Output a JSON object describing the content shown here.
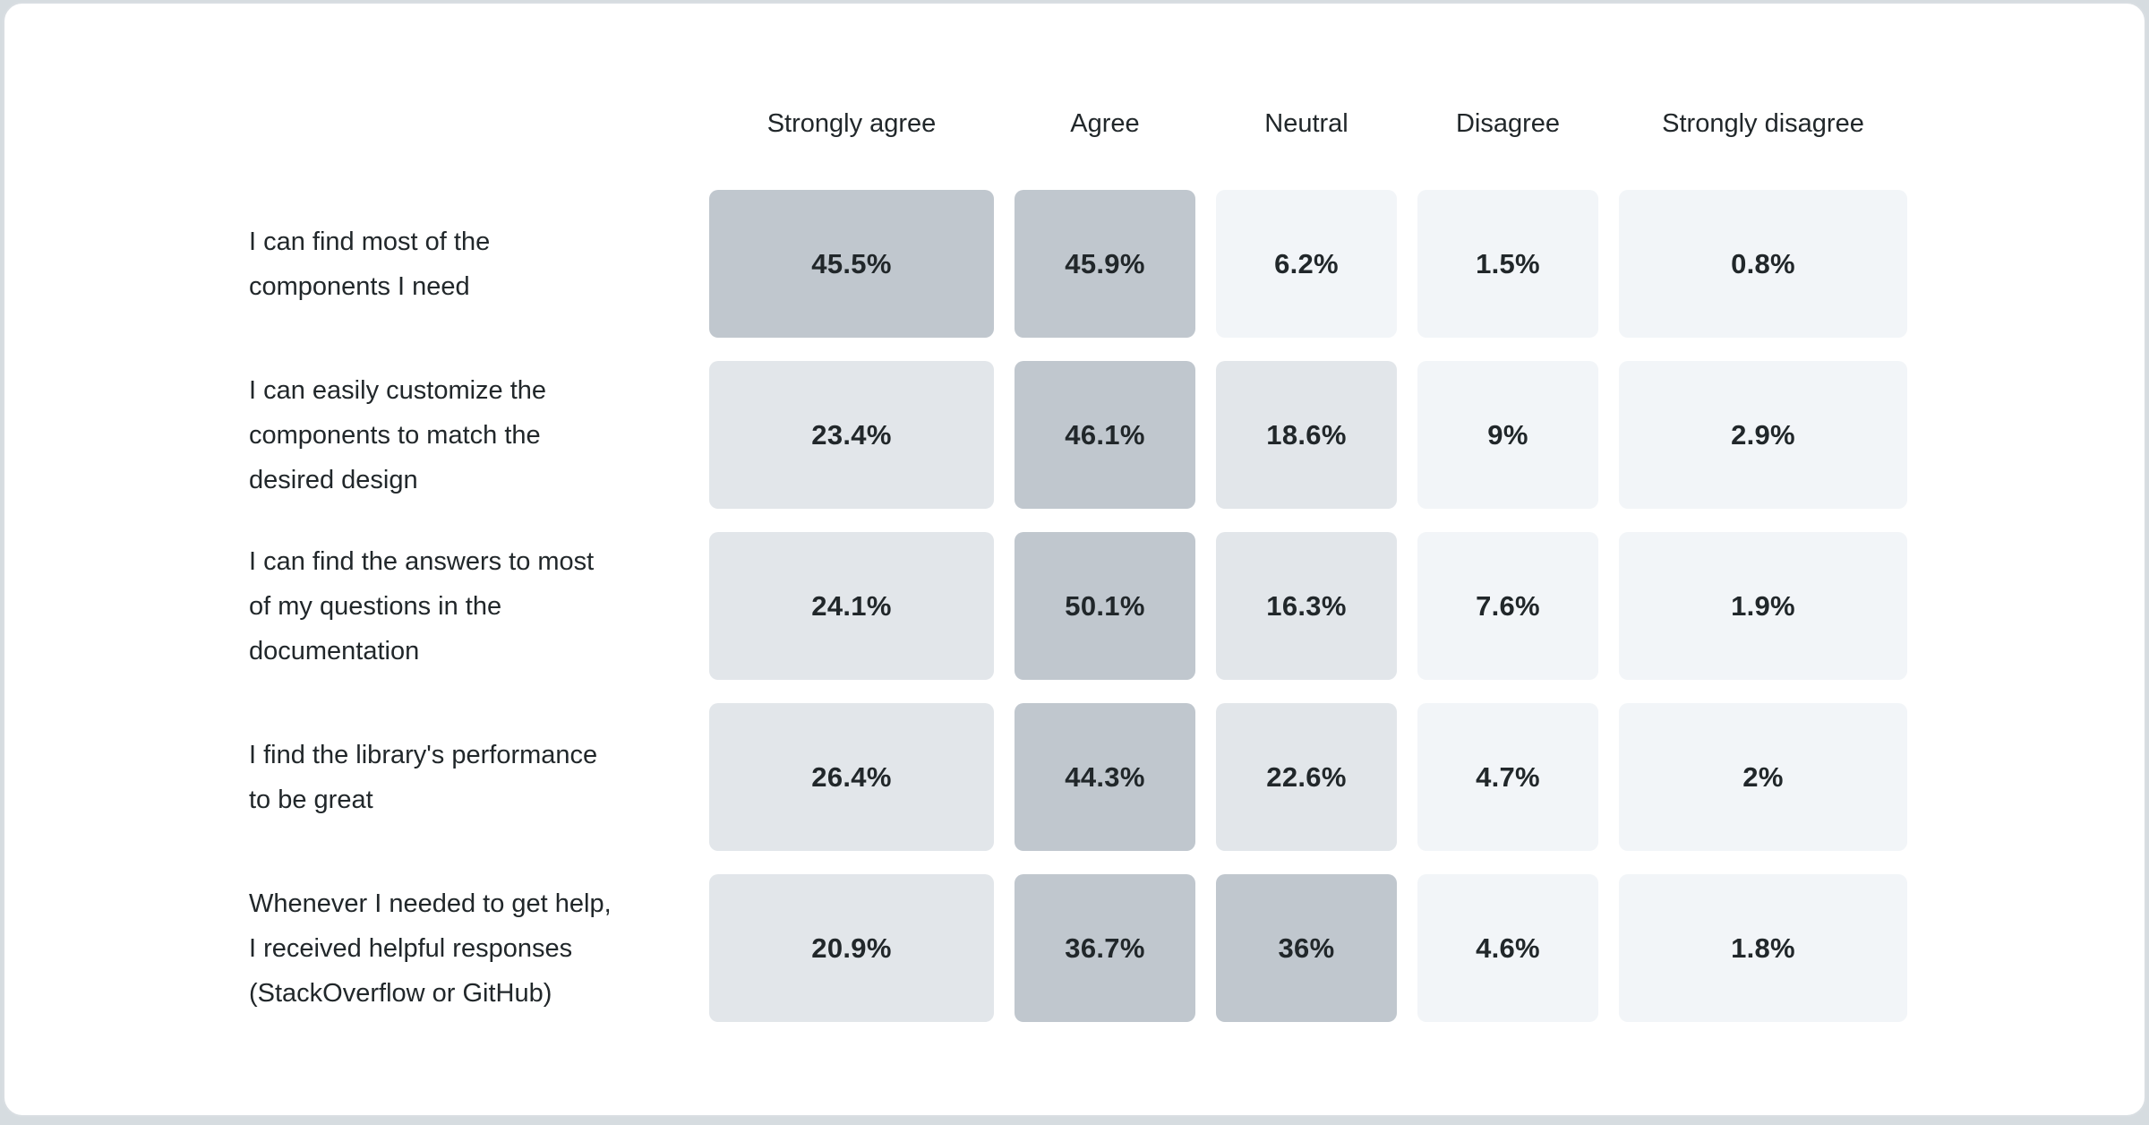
{
  "page": {
    "background_color": "#d6dce0",
    "card_background": "#ffffff",
    "card_border_color": "#d9dee2",
    "text_color": "#21272a"
  },
  "chart_data": {
    "type": "heatmap",
    "title": "",
    "legend_position": "none",
    "grid": false,
    "columns": [
      "Strongly agree",
      "Agree",
      "Neutral",
      "Disagree",
      "Strongly disagree"
    ],
    "rows": [
      {
        "label": "I can find most of the components I need",
        "label_lines": [
          "I can find most of the",
          "components I need"
        ],
        "values": [
          45.5,
          45.9,
          6.2,
          1.5,
          0.8
        ],
        "display_values": [
          "45.5%",
          "45.9%",
          "6.2%",
          "1.5%",
          "0.8%"
        ]
      },
      {
        "label": "I can easily customize the components to match the desired design",
        "label_lines": [
          "I can easily customize the",
          "components to match the",
          "desired design"
        ],
        "values": [
          23.4,
          46.1,
          18.6,
          9,
          2.9
        ],
        "display_values": [
          "23.4%",
          "46.1%",
          "18.6%",
          "9%",
          "2.9%"
        ]
      },
      {
        "label": "I can find the answers to most of my questions in the documentation",
        "label_lines": [
          "I can find the answers to most",
          "of my questions in the",
          "documentation"
        ],
        "values": [
          24.1,
          50.1,
          16.3,
          7.6,
          1.9
        ],
        "display_values": [
          "24.1%",
          "50.1%",
          "16.3%",
          "7.6%",
          "1.9%"
        ]
      },
      {
        "label": "I find the library's performance to be great",
        "label_lines": [
          "I find the library's performance",
          "to be great"
        ],
        "values": [
          26.4,
          44.3,
          22.6,
          4.7,
          2
        ],
        "display_values": [
          "26.4%",
          "44.3%",
          "22.6%",
          "4.7%",
          "2%"
        ]
      },
      {
        "label": "Whenever I needed to get help, I received helpful responses (StackOverflow or GitHub)",
        "label_lines": [
          "Whenever I needed to get help,",
          "I received helpful responses",
          "(StackOverflow or GitHub)"
        ],
        "values": [
          20.9,
          36.7,
          36,
          4.6,
          1.8
        ],
        "display_values": [
          "20.9%",
          "36.7%",
          "36%",
          "4.6%",
          "1.8%"
        ]
      }
    ],
    "color_scale": {
      "bins": [
        {
          "max": 10,
          "color": "#f2f5f8"
        },
        {
          "max": 30,
          "color": "#e2e6ea"
        },
        {
          "max": 100,
          "color": "#c0c7ce"
        }
      ],
      "cell_text_color": "#21272a"
    }
  }
}
